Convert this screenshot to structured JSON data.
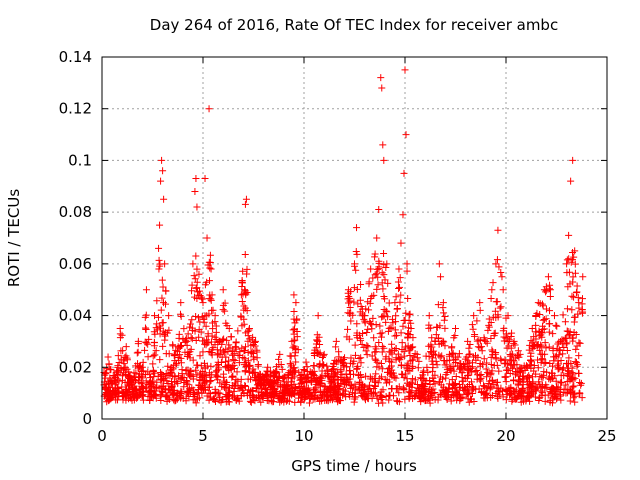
{
  "chart_data": {
    "type": "scatter",
    "title": "Day 264 of 2016, Rate Of TEC Index for receiver ambc",
    "xlabel": "GPS time / hours",
    "ylabel": "ROTI / TECUs",
    "xlim": [
      0,
      25
    ],
    "ylim": [
      0,
      0.14
    ],
    "xticks": [
      0,
      5,
      10,
      15,
      20,
      25
    ],
    "xtick_labels": [
      "0",
      "5",
      "10",
      "15",
      "20",
      "25"
    ],
    "yticks": [
      0,
      0.02,
      0.04,
      0.06,
      0.08,
      0.1,
      0.12,
      0.14
    ],
    "ytick_labels": [
      "0",
      "0.02",
      "0.04",
      "0.06",
      "0.08",
      "0.1",
      "0.12",
      "0.14"
    ],
    "grid": true,
    "marker": "+",
    "color": "#ff0000",
    "series": [
      {
        "name": "ROTI",
        "x": [
          0.1,
          0.3,
          0.6,
          0.9,
          1.2,
          1.5,
          1.8,
          2.0,
          2.2,
          2.4,
          2.6,
          2.8,
          2.85,
          2.9,
          2.95,
          3.0,
          3.05,
          3.1,
          3.3,
          3.6,
          3.9,
          4.2,
          4.5,
          4.6,
          4.65,
          4.7,
          4.8,
          5.0,
          5.1,
          5.2,
          5.3,
          5.4,
          5.6,
          5.8,
          6.0,
          6.3,
          6.6,
          6.9,
          7.1,
          7.15,
          7.3,
          7.6,
          7.9,
          8.2,
          8.5,
          8.8,
          9.1,
          9.4,
          9.5,
          9.6,
          9.8,
          10.1,
          10.4,
          10.7,
          11.0,
          11.3,
          11.6,
          11.9,
          12.2,
          12.5,
          12.6,
          12.8,
          13.0,
          13.3,
          13.6,
          13.7,
          13.8,
          13.85,
          13.9,
          13.95,
          14.1,
          14.3,
          14.5,
          14.7,
          14.8,
          14.9,
          14.95,
          15.0,
          15.05,
          15.1,
          15.3,
          15.6,
          15.9,
          16.2,
          16.5,
          16.7,
          16.9,
          17.2,
          17.5,
          17.8,
          18.1,
          18.4,
          18.7,
          19.0,
          19.3,
          19.5,
          19.6,
          19.8,
          20.1,
          20.4,
          20.7,
          21.0,
          21.3,
          21.6,
          21.9,
          22.1,
          22.2,
          22.4,
          22.7,
          23.0,
          23.1,
          23.2,
          23.3,
          23.4,
          23.6,
          23.8
        ],
        "values": [
          0.018,
          0.024,
          0.015,
          0.035,
          0.028,
          0.012,
          0.03,
          0.02,
          0.05,
          0.016,
          0.04,
          0.066,
          0.075,
          0.092,
          0.1,
          0.096,
          0.085,
          0.06,
          0.04,
          0.025,
          0.045,
          0.03,
          0.06,
          0.088,
          0.093,
          0.082,
          0.056,
          0.045,
          0.093,
          0.07,
          0.12,
          0.058,
          0.04,
          0.03,
          0.05,
          0.035,
          0.028,
          0.048,
          0.083,
          0.085,
          0.035,
          0.03,
          0.015,
          0.02,
          0.018,
          0.025,
          0.012,
          0.03,
          0.048,
          0.045,
          0.015,
          0.022,
          0.018,
          0.04,
          0.025,
          0.016,
          0.03,
          0.022,
          0.05,
          0.06,
          0.074,
          0.052,
          0.04,
          0.058,
          0.07,
          0.081,
          0.132,
          0.128,
          0.106,
          0.1,
          0.06,
          0.035,
          0.045,
          0.058,
          0.068,
          0.079,
          0.095,
          0.135,
          0.11,
          0.06,
          0.035,
          0.025,
          0.018,
          0.04,
          0.03,
          0.06,
          0.045,
          0.025,
          0.035,
          0.02,
          0.03,
          0.04,
          0.045,
          0.03,
          0.05,
          0.06,
          0.073,
          0.055,
          0.04,
          0.03,
          0.025,
          0.02,
          0.035,
          0.045,
          0.05,
          0.055,
          0.05,
          0.04,
          0.03,
          0.06,
          0.071,
          0.092,
          0.1,
          0.065,
          0.045,
          0.055
        ]
      }
    ]
  }
}
